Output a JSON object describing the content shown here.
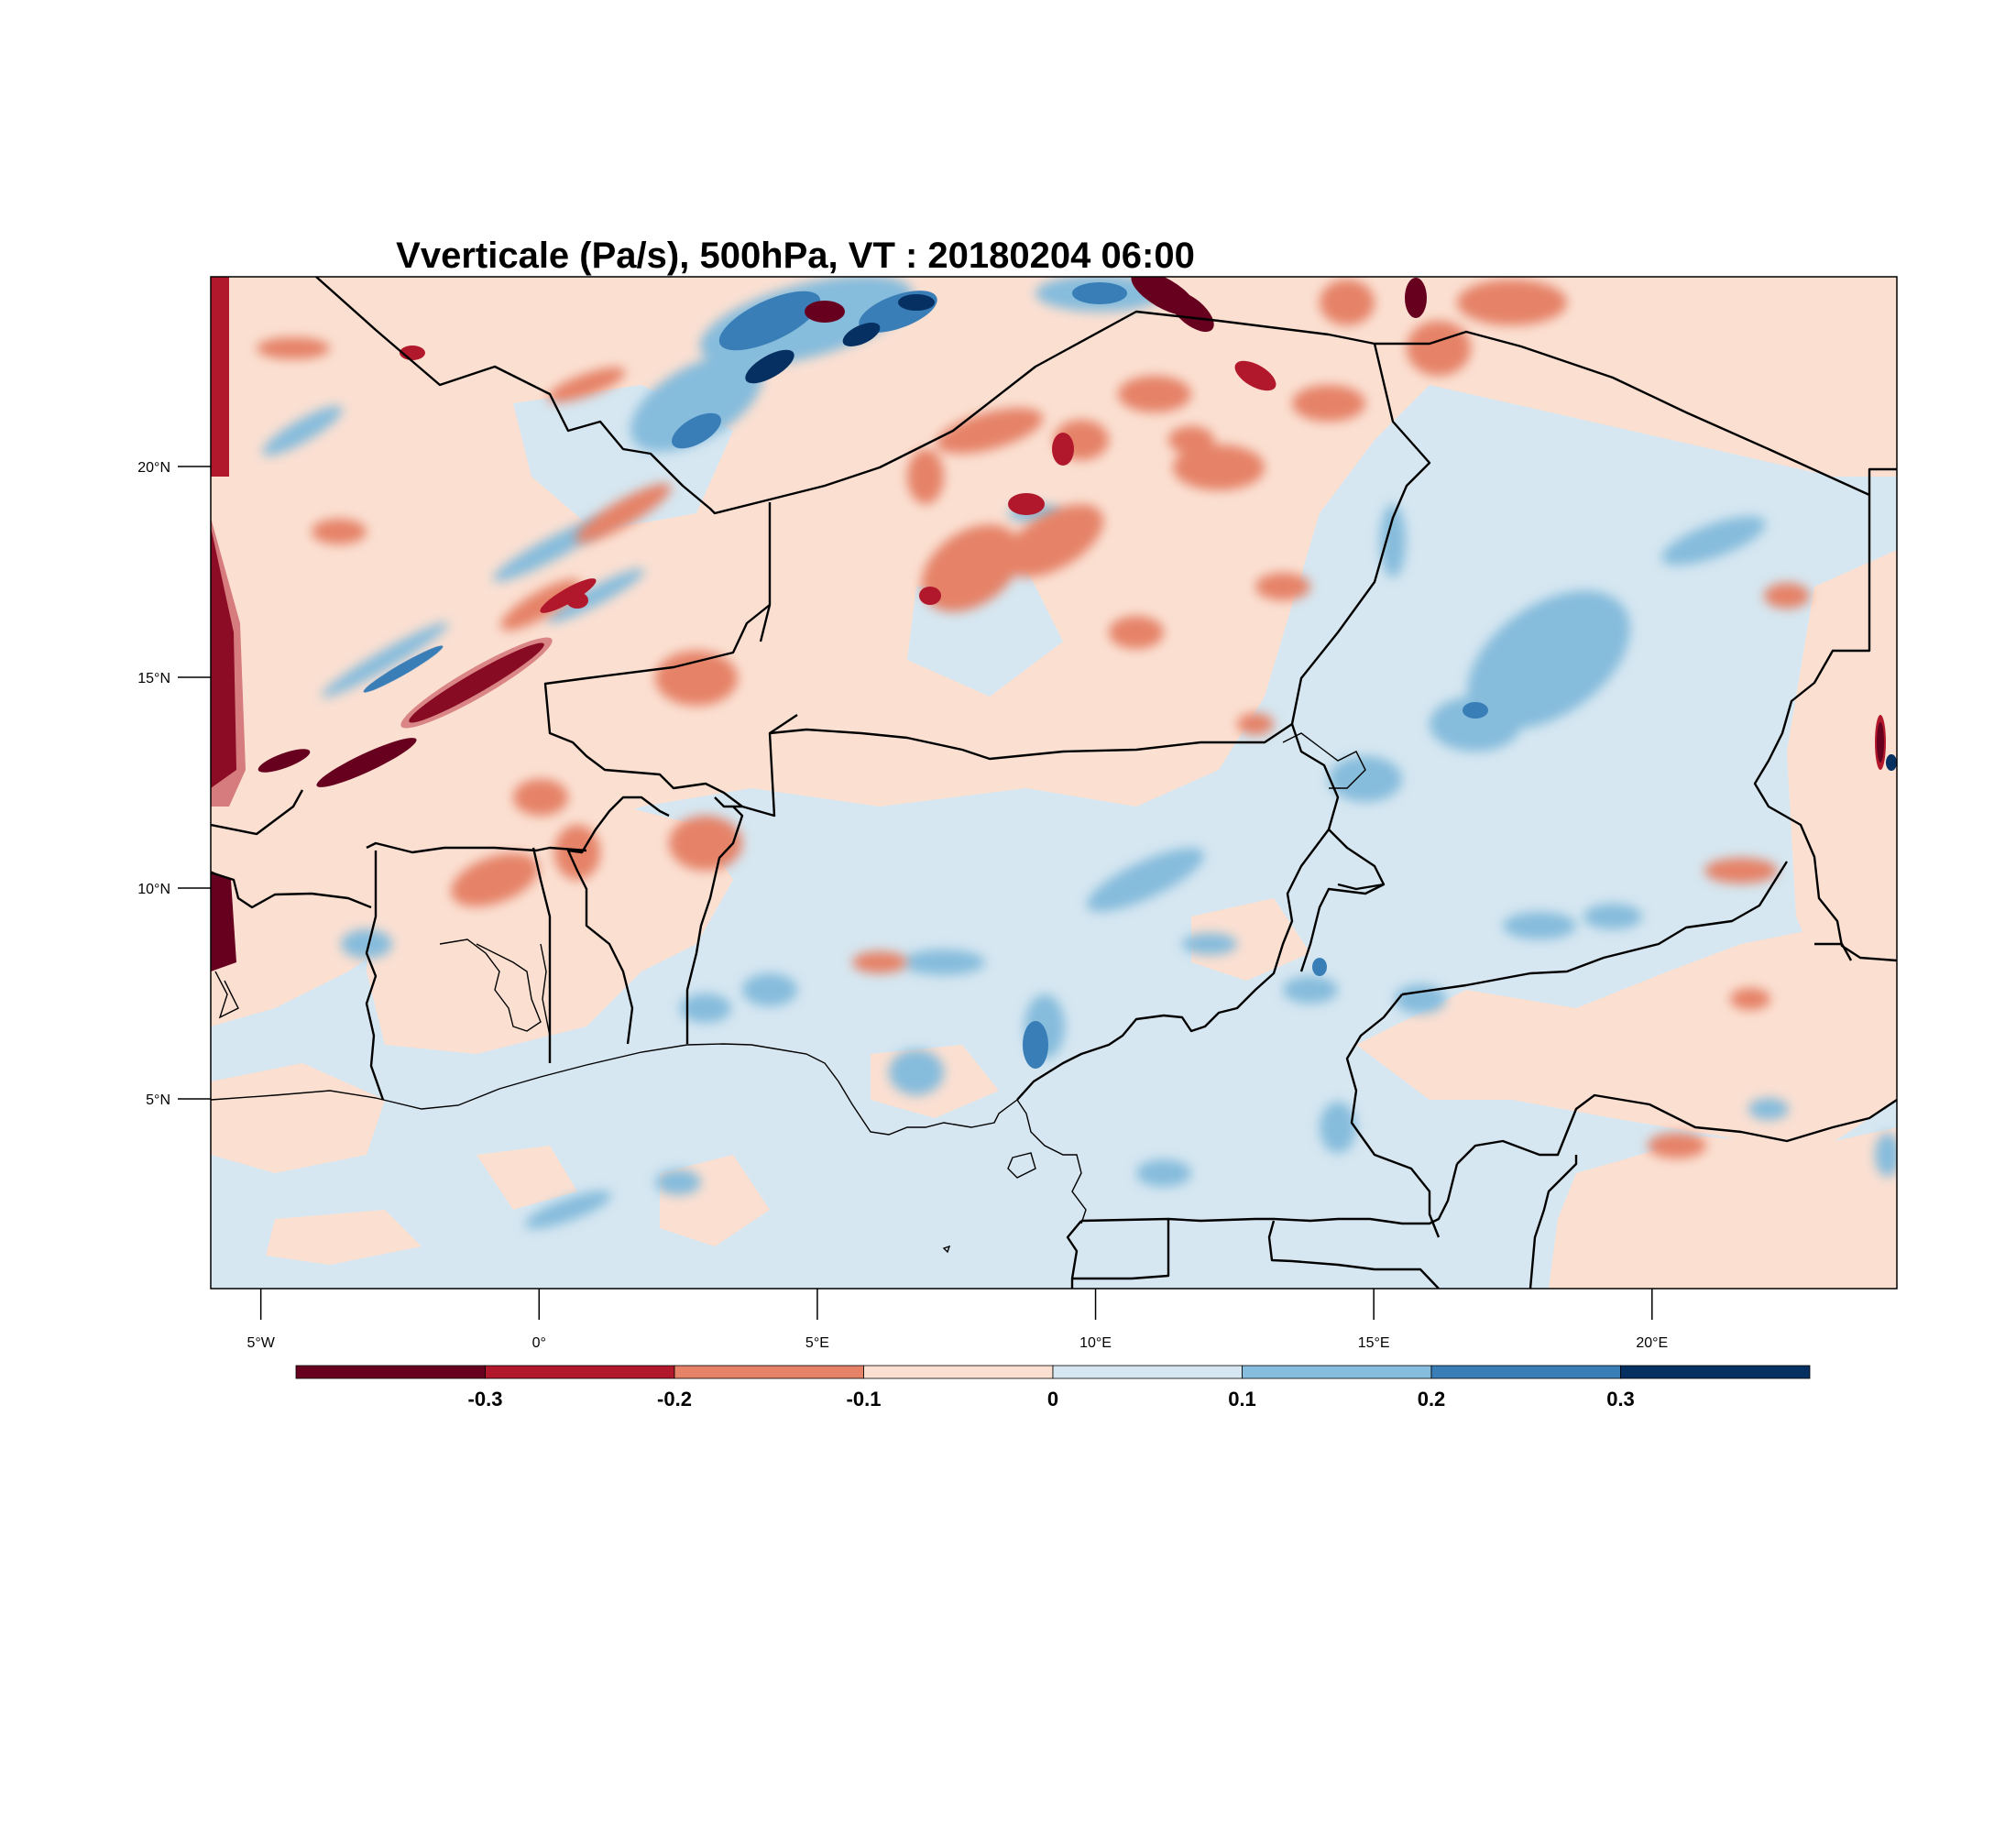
{
  "title": "Vverticale (Pa/s), 500hPa, VT : 20180204  06:00",
  "map": {
    "lon_range": [
      -5.9,
      24.4
    ],
    "lat_range": [
      0.5,
      24.5
    ],
    "lon_ticks": [
      {
        "value": -5,
        "label": "5°W"
      },
      {
        "value": 0,
        "label": "0°"
      },
      {
        "value": 5,
        "label": "5°E"
      },
      {
        "value": 10,
        "label": "10°E"
      },
      {
        "value": 15,
        "label": "15°E"
      },
      {
        "value": 20,
        "label": "20°E"
      }
    ],
    "lat_ticks": [
      {
        "value": 5,
        "label": "5°N"
      },
      {
        "value": 10,
        "label": "10°N"
      },
      {
        "value": 15,
        "label": "15°N"
      },
      {
        "value": 20,
        "label": "20°N"
      }
    ]
  },
  "colorbar": {
    "colors": [
      "#67001f",
      "#b2182b",
      "#e58267",
      "#fbe0d2",
      "#d6e7f1",
      "#86bcdc",
      "#3a7eb8",
      "#053061"
    ],
    "labels": [
      "-0.3",
      "-0.2",
      "-0.1",
      "0",
      "0.1",
      "0.2",
      "0.3"
    ]
  }
}
